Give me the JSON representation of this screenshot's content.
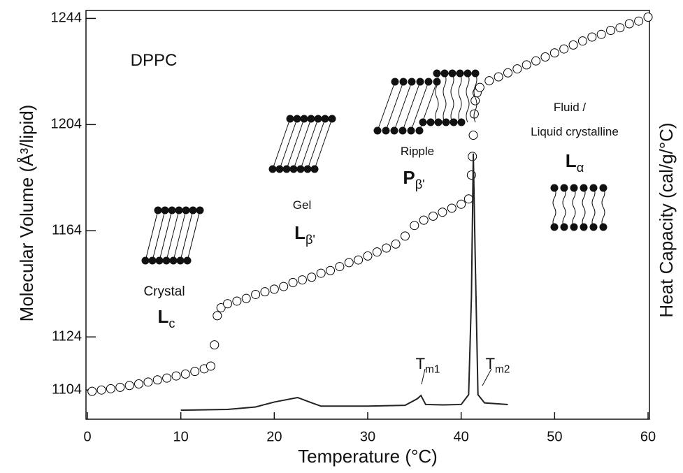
{
  "chart_data": {
    "type": "scatter",
    "xlabel": "Temperature (°C)",
    "ylabel": "Molecular Volume (Å³/lipid)",
    "y2label": "Heat Capacity (cal/g/°C)",
    "xlim": [
      0,
      60
    ],
    "xticks": [
      0,
      10,
      20,
      30,
      40,
      50,
      60
    ],
    "ylim": [
      1093,
      1247
    ],
    "yticks": [
      1104,
      1124,
      1164,
      1204,
      1244
    ],
    "y2lim": [
      0,
      100
    ],
    "series": [
      {
        "name": "Molecular Volume",
        "color": "#000000",
        "x": [
          0.5,
          1.5,
          2.5,
          3.5,
          4.5,
          5.5,
          6.5,
          7.5,
          8.5,
          9.5,
          10.5,
          11.5,
          12.5,
          13.2,
          13.6,
          13.9,
          14.3,
          15,
          16,
          17,
          18,
          19,
          20,
          21,
          22,
          23,
          24,
          25,
          26,
          27,
          28,
          29,
          30,
          31,
          32,
          33,
          34,
          35,
          36,
          37,
          38,
          39,
          40,
          40.8,
          41.1,
          41.2,
          41.3,
          41.4,
          41.5,
          41.7,
          42,
          43,
          44,
          45,
          46,
          47,
          48,
          49,
          50,
          51,
          52,
          53,
          54,
          55,
          56,
          57,
          58,
          59,
          60
        ],
        "values": [
          1103.5,
          1104,
          1104.5,
          1105,
          1105.7,
          1106.3,
          1107,
          1107.8,
          1108.5,
          1109.3,
          1110,
          1111,
          1112,
          1113,
          1121,
          1132,
          1135,
          1136.5,
          1137.5,
          1138.5,
          1140,
          1141,
          1142,
          1143,
          1144.5,
          1145.5,
          1146.5,
          1148,
          1149,
          1150.5,
          1152,
          1153,
          1154.5,
          1156,
          1157.5,
          1159,
          1162,
          1166,
          1168,
          1169.5,
          1171,
          1172.5,
          1174,
          1176,
          1185,
          1192,
          1200,
          1208,
          1213,
          1216,
          1218,
          1220.5,
          1222,
          1223.5,
          1225,
          1226.5,
          1228,
          1229.5,
          1231,
          1232.5,
          1234,
          1235.5,
          1237,
          1238,
          1239.5,
          1240.5,
          1242,
          1243,
          1244.5
        ]
      },
      {
        "name": "Heat Capacity",
        "color": "#222222",
        "axis": "y2",
        "x": [
          10,
          15,
          18,
          20,
          22.5,
          24,
          25,
          30,
          34,
          35.3,
          35.7,
          36.2,
          38,
          40,
          40.8,
          41.1,
          41.3,
          41.5,
          41.8,
          42.5,
          45
        ],
        "values": [
          2.2,
          2.4,
          3.0,
          4.2,
          5.3,
          4.0,
          3.2,
          3.2,
          3.4,
          5,
          5.8,
          3.6,
          3.5,
          3.6,
          6,
          30,
          65,
          40,
          6,
          4,
          3.6
        ]
      }
    ],
    "annotations": [
      {
        "text": "DPPC"
      },
      {
        "text": "Crystal"
      },
      {
        "text": "L",
        "sub": "c"
      },
      {
        "text": "Gel"
      },
      {
        "text": "L",
        "sub": "β'"
      },
      {
        "text": "Ripple"
      },
      {
        "text": "P",
        "sub": "β'"
      },
      {
        "text": "Fluid /"
      },
      {
        "text": "Liquid crystalline"
      },
      {
        "text": "L",
        "sub": "α"
      },
      {
        "text": "T",
        "sub": "m1"
      },
      {
        "text": "T",
        "sub": "m2"
      }
    ]
  }
}
